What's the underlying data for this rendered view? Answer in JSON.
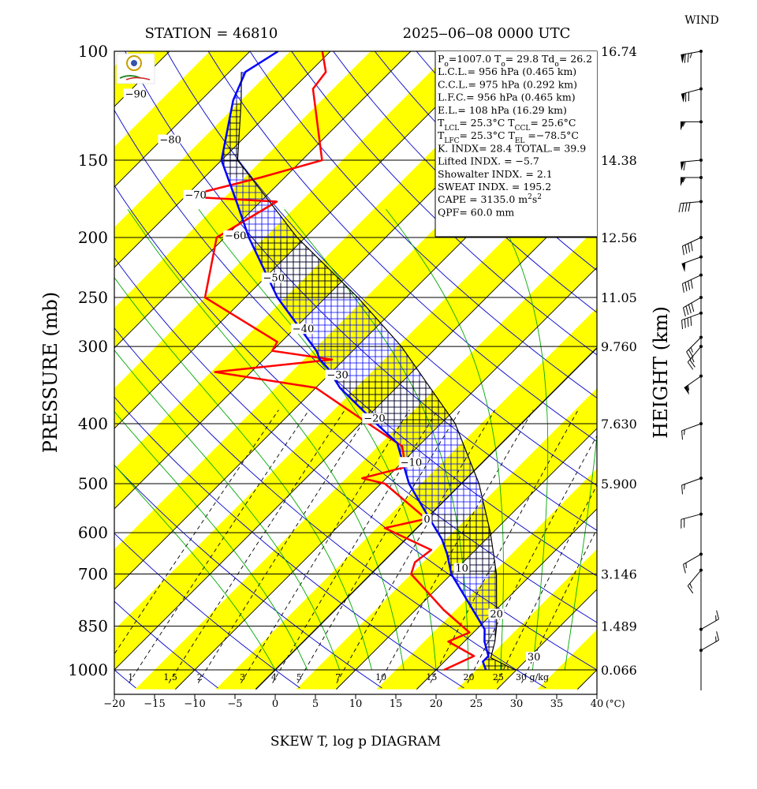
{
  "chart_data": {
    "type": "line",
    "title": "SKEW T, log p DIAGRAM",
    "station_label": "STATION = 46810",
    "time_label": "2025‒06‒08 0000 UTC",
    "ylabel": "PRESSURE (mb)",
    "ylabel_right": "HEIGHT (km)",
    "xunit": "(°C)",
    "xlim": [
      -20,
      40
    ],
    "ylim": [
      1050,
      100
    ],
    "y_scale": "log",
    "x_ticks": [
      "−20",
      "−15",
      "−10",
      "−5",
      "0",
      "5",
      "10",
      "15",
      "20",
      "25",
      "30",
      "35",
      "40"
    ],
    "pressure_levels": [
      100,
      150,
      200,
      250,
      300,
      400,
      500,
      600,
      700,
      850,
      1000
    ],
    "pressure_tick_labels": [
      "100",
      "150",
      "200",
      "250",
      "300",
      "400",
      "500",
      "600",
      "700",
      "850",
      "1000"
    ],
    "height_labels": [
      "16.74",
      "14.38",
      "12.56",
      "11.05",
      "9.760",
      "7.630",
      "5.900",
      "3.146",
      "1.489",
      "0.066"
    ],
    "height_label_pressures": [
      100,
      150,
      200,
      250,
      300,
      400,
      500,
      700,
      850,
      1000
    ],
    "isotherm_labels": [
      {
        "t": -90,
        "text": "−90",
        "p": 118
      },
      {
        "t": -80,
        "text": "−80",
        "p": 140
      },
      {
        "t": -70,
        "text": "−70",
        "p": 172
      },
      {
        "t": -60,
        "text": "−60",
        "p": 200
      },
      {
        "t": -50,
        "text": "−50",
        "p": 234
      },
      {
        "t": -40,
        "text": "−40",
        "p": 283
      },
      {
        "t": -30,
        "text": "−30",
        "p": 336
      },
      {
        "t": -20,
        "text": "−20",
        "p": 395
      },
      {
        "t": -10,
        "text": "−10",
        "p": 465
      },
      {
        "t": 0,
        "text": "0",
        "p": 575
      },
      {
        "t": 10,
        "text": "10",
        "p": 690
      },
      {
        "t": 20,
        "text": "20",
        "p": 818
      },
      {
        "t": 30,
        "text": "30",
        "p": 960
      }
    ],
    "mixing_ratio_labels": [
      "0.7",
      "1",
      "1.5",
      "2",
      "3",
      "4",
      "5",
      "7",
      "10",
      "15",
      "20",
      "25",
      "30 g/kg"
    ],
    "mixing_ratio_values": [
      0.7,
      1,
      1.5,
      2,
      3,
      4,
      5,
      7,
      10,
      15,
      20,
      25,
      30
    ],
    "series": [
      {
        "name": "",
        "color": "#ff0000",
        "points": [
          {
            "p": 1000,
            "t": 21.0
          },
          {
            "p": 950,
            "t": 23.0
          },
          {
            "p": 900,
            "t": 18.0
          },
          {
            "p": 870,
            "t": 19.5
          },
          {
            "p": 800,
            "t": 13.5
          },
          {
            "p": 700,
            "t": 5.0
          },
          {
            "p": 670,
            "t": 4.0
          },
          {
            "p": 640,
            "t": 4.5
          },
          {
            "p": 610,
            "t": -0.5
          },
          {
            "p": 590,
            "t": -4.0
          },
          {
            "p": 570,
            "t": 0.0
          },
          {
            "p": 500,
            "t": -9.5
          },
          {
            "p": 490,
            "t": -13.0
          },
          {
            "p": 470,
            "t": -9.0
          },
          {
            "p": 435,
            "t": -12.0
          },
          {
            "p": 400,
            "t": -19.0
          },
          {
            "p": 350,
            "t": -30.0
          },
          {
            "p": 330,
            "t": -44.5
          },
          {
            "p": 315,
            "t": -31.5
          },
          {
            "p": 305,
            "t": -40.0
          },
          {
            "p": 295,
            "t": -40.5
          },
          {
            "p": 250,
            "t": -55.0
          },
          {
            "p": 200,
            "t": -61.0
          },
          {
            "p": 175,
            "t": -58.0
          },
          {
            "p": 172,
            "t": -69.0
          },
          {
            "p": 170,
            "t": -69.0
          },
          {
            "p": 160,
            "t": -63.0
          },
          {
            "p": 150,
            "t": -57.5
          },
          {
            "p": 115,
            "t": -67.5
          },
          {
            "p": 108,
            "t": -68.0
          },
          {
            "p": 100,
            "t": -71.0
          }
        ]
      },
      {
        "name": "",
        "color": "#0000ff",
        "points": [
          {
            "p": 1000,
            "t": 26.2
          },
          {
            "p": 970,
            "t": 24.8
          },
          {
            "p": 950,
            "t": 24.8
          },
          {
            "p": 900,
            "t": 22.5
          },
          {
            "p": 860,
            "t": 21.0
          },
          {
            "p": 700,
            "t": 10.0
          },
          {
            "p": 650,
            "t": 7.0
          },
          {
            "p": 615,
            "t": 4.5
          },
          {
            "p": 560,
            "t": -0.5
          },
          {
            "p": 500,
            "t": -6.5
          },
          {
            "p": 430,
            "t": -13.0
          },
          {
            "p": 400,
            "t": -18.0
          },
          {
            "p": 350,
            "t": -27.0
          },
          {
            "p": 325,
            "t": -31.0
          },
          {
            "p": 315,
            "t": -33.0
          },
          {
            "p": 305,
            "t": -34.5
          },
          {
            "p": 250,
            "t": -46.0
          },
          {
            "p": 200,
            "t": -57.0
          },
          {
            "p": 175,
            "t": -63.0
          },
          {
            "p": 150,
            "t": -70.0
          },
          {
            "p": 120,
            "t": -76.0
          },
          {
            "p": 108,
            "t": -78.0
          },
          {
            "p": 100,
            "t": -76.5
          }
        ]
      },
      {
        "name": "",
        "color": "#000000",
        "points": [
          {
            "p": 1000,
            "t": 29.8
          },
          {
            "p": 956,
            "t": 25.3
          },
          {
            "p": 900,
            "t": 23.8
          },
          {
            "p": 850,
            "t": 22.1
          },
          {
            "p": 700,
            "t": 15.6
          },
          {
            "p": 600,
            "t": 9.7
          },
          {
            "p": 500,
            "t": 2.2
          },
          {
            "p": 400,
            "t": -8.2
          },
          {
            "p": 300,
            "t": -24.5
          },
          {
            "p": 250,
            "t": -36.0
          },
          {
            "p": 200,
            "t": -51.0
          },
          {
            "p": 150,
            "t": -68.0
          },
          {
            "p": 120,
            "t": -75.0
          },
          {
            "p": 108,
            "t": -78.5
          }
        ]
      }
    ],
    "info_box": [
      {
        "parts": [
          {
            "t": "P"
          },
          {
            "t": "o",
            "sub": true
          },
          {
            "t": "=1007.0  T"
          },
          {
            "t": "o",
            "sub": true
          },
          {
            "t": "= 29.8  Td"
          },
          {
            "t": "o",
            "sub": true
          },
          {
            "t": "= 26.2"
          }
        ]
      },
      {
        "parts": [
          {
            "t": "L.C.L.= 956 hPa (0.465 km)"
          }
        ]
      },
      {
        "parts": [
          {
            "t": "C.C.L.= 975 hPa (0.292 km)"
          }
        ]
      },
      {
        "parts": [
          {
            "t": "L.F.C.= 956 hPa (0.465 km)"
          }
        ]
      },
      {
        "parts": [
          {
            "t": "E.L.= 108 hPa (16.29 km)"
          }
        ]
      },
      {
        "parts": [
          {
            "t": "T"
          },
          {
            "t": "LCL",
            "sub": true
          },
          {
            "t": "= 25.3°C  T"
          },
          {
            "t": "CCL",
            "sub": true
          },
          {
            "t": "= 25.6°C"
          }
        ]
      },
      {
        "parts": [
          {
            "t": "T"
          },
          {
            "t": "LFC",
            "sub": true
          },
          {
            "t": "= 25.3°C  T"
          },
          {
            "t": "EL",
            "sub": true
          },
          {
            "t": " =−78.5°C"
          }
        ]
      },
      {
        "parts": [
          {
            "t": "K. INDX= 28.4  TOTAL.= 39.9"
          }
        ]
      },
      {
        "parts": [
          {
            "t": "Lifted INDX. =   −5.7"
          }
        ]
      },
      {
        "parts": [
          {
            "t": "Showalter INDX. =     2.1"
          }
        ]
      },
      {
        "parts": [
          {
            "t": "SWEAT INDX. =   195.2"
          }
        ]
      },
      {
        "parts": [
          {
            "t": "CAPE = 3135.0 m"
          },
          {
            "t": "2",
            "sup": true
          },
          {
            "t": "s"
          },
          {
            "t": "2",
            "sup": true
          }
        ]
      },
      {
        "parts": [
          {
            "t": "QPF= 60.0 mm"
          }
        ]
      }
    ],
    "wind_title": "WIND",
    "wind_barbs": [
      {
        "p": 100,
        "dir": 260,
        "kt": 75
      },
      {
        "p": 115,
        "dir": 255,
        "kt": 70
      },
      {
        "p": 130,
        "dir": 270,
        "kt": 55
      },
      {
        "p": 150,
        "dir": 265,
        "kt": 60
      },
      {
        "p": 160,
        "dir": 270,
        "kt": 55
      },
      {
        "p": 175,
        "dir": 265,
        "kt": 40
      },
      {
        "p": 200,
        "dir": 245,
        "kt": 40
      },
      {
        "p": 215,
        "dir": 250,
        "kt": 50
      },
      {
        "p": 230,
        "dir": 245,
        "kt": 40
      },
      {
        "p": 250,
        "dir": 240,
        "kt": 40
      },
      {
        "p": 265,
        "dir": 250,
        "kt": 40
      },
      {
        "p": 290,
        "dir": 225,
        "kt": 25
      },
      {
        "p": 300,
        "dir": 220,
        "kt": 25
      },
      {
        "p": 335,
        "dir": 235,
        "kt": 55
      },
      {
        "p": 400,
        "dir": 250,
        "kt": 15
      },
      {
        "p": 490,
        "dir": 250,
        "kt": 15
      },
      {
        "p": 560,
        "dir": 255,
        "kt": 20
      },
      {
        "p": 650,
        "dir": 240,
        "kt": 15
      },
      {
        "p": 690,
        "dir": 220,
        "kt": 15
      },
      {
        "p": 860,
        "dir": 60,
        "kt": 15
      },
      {
        "p": 930,
        "dir": 60,
        "kt": 15
      }
    ]
  }
}
